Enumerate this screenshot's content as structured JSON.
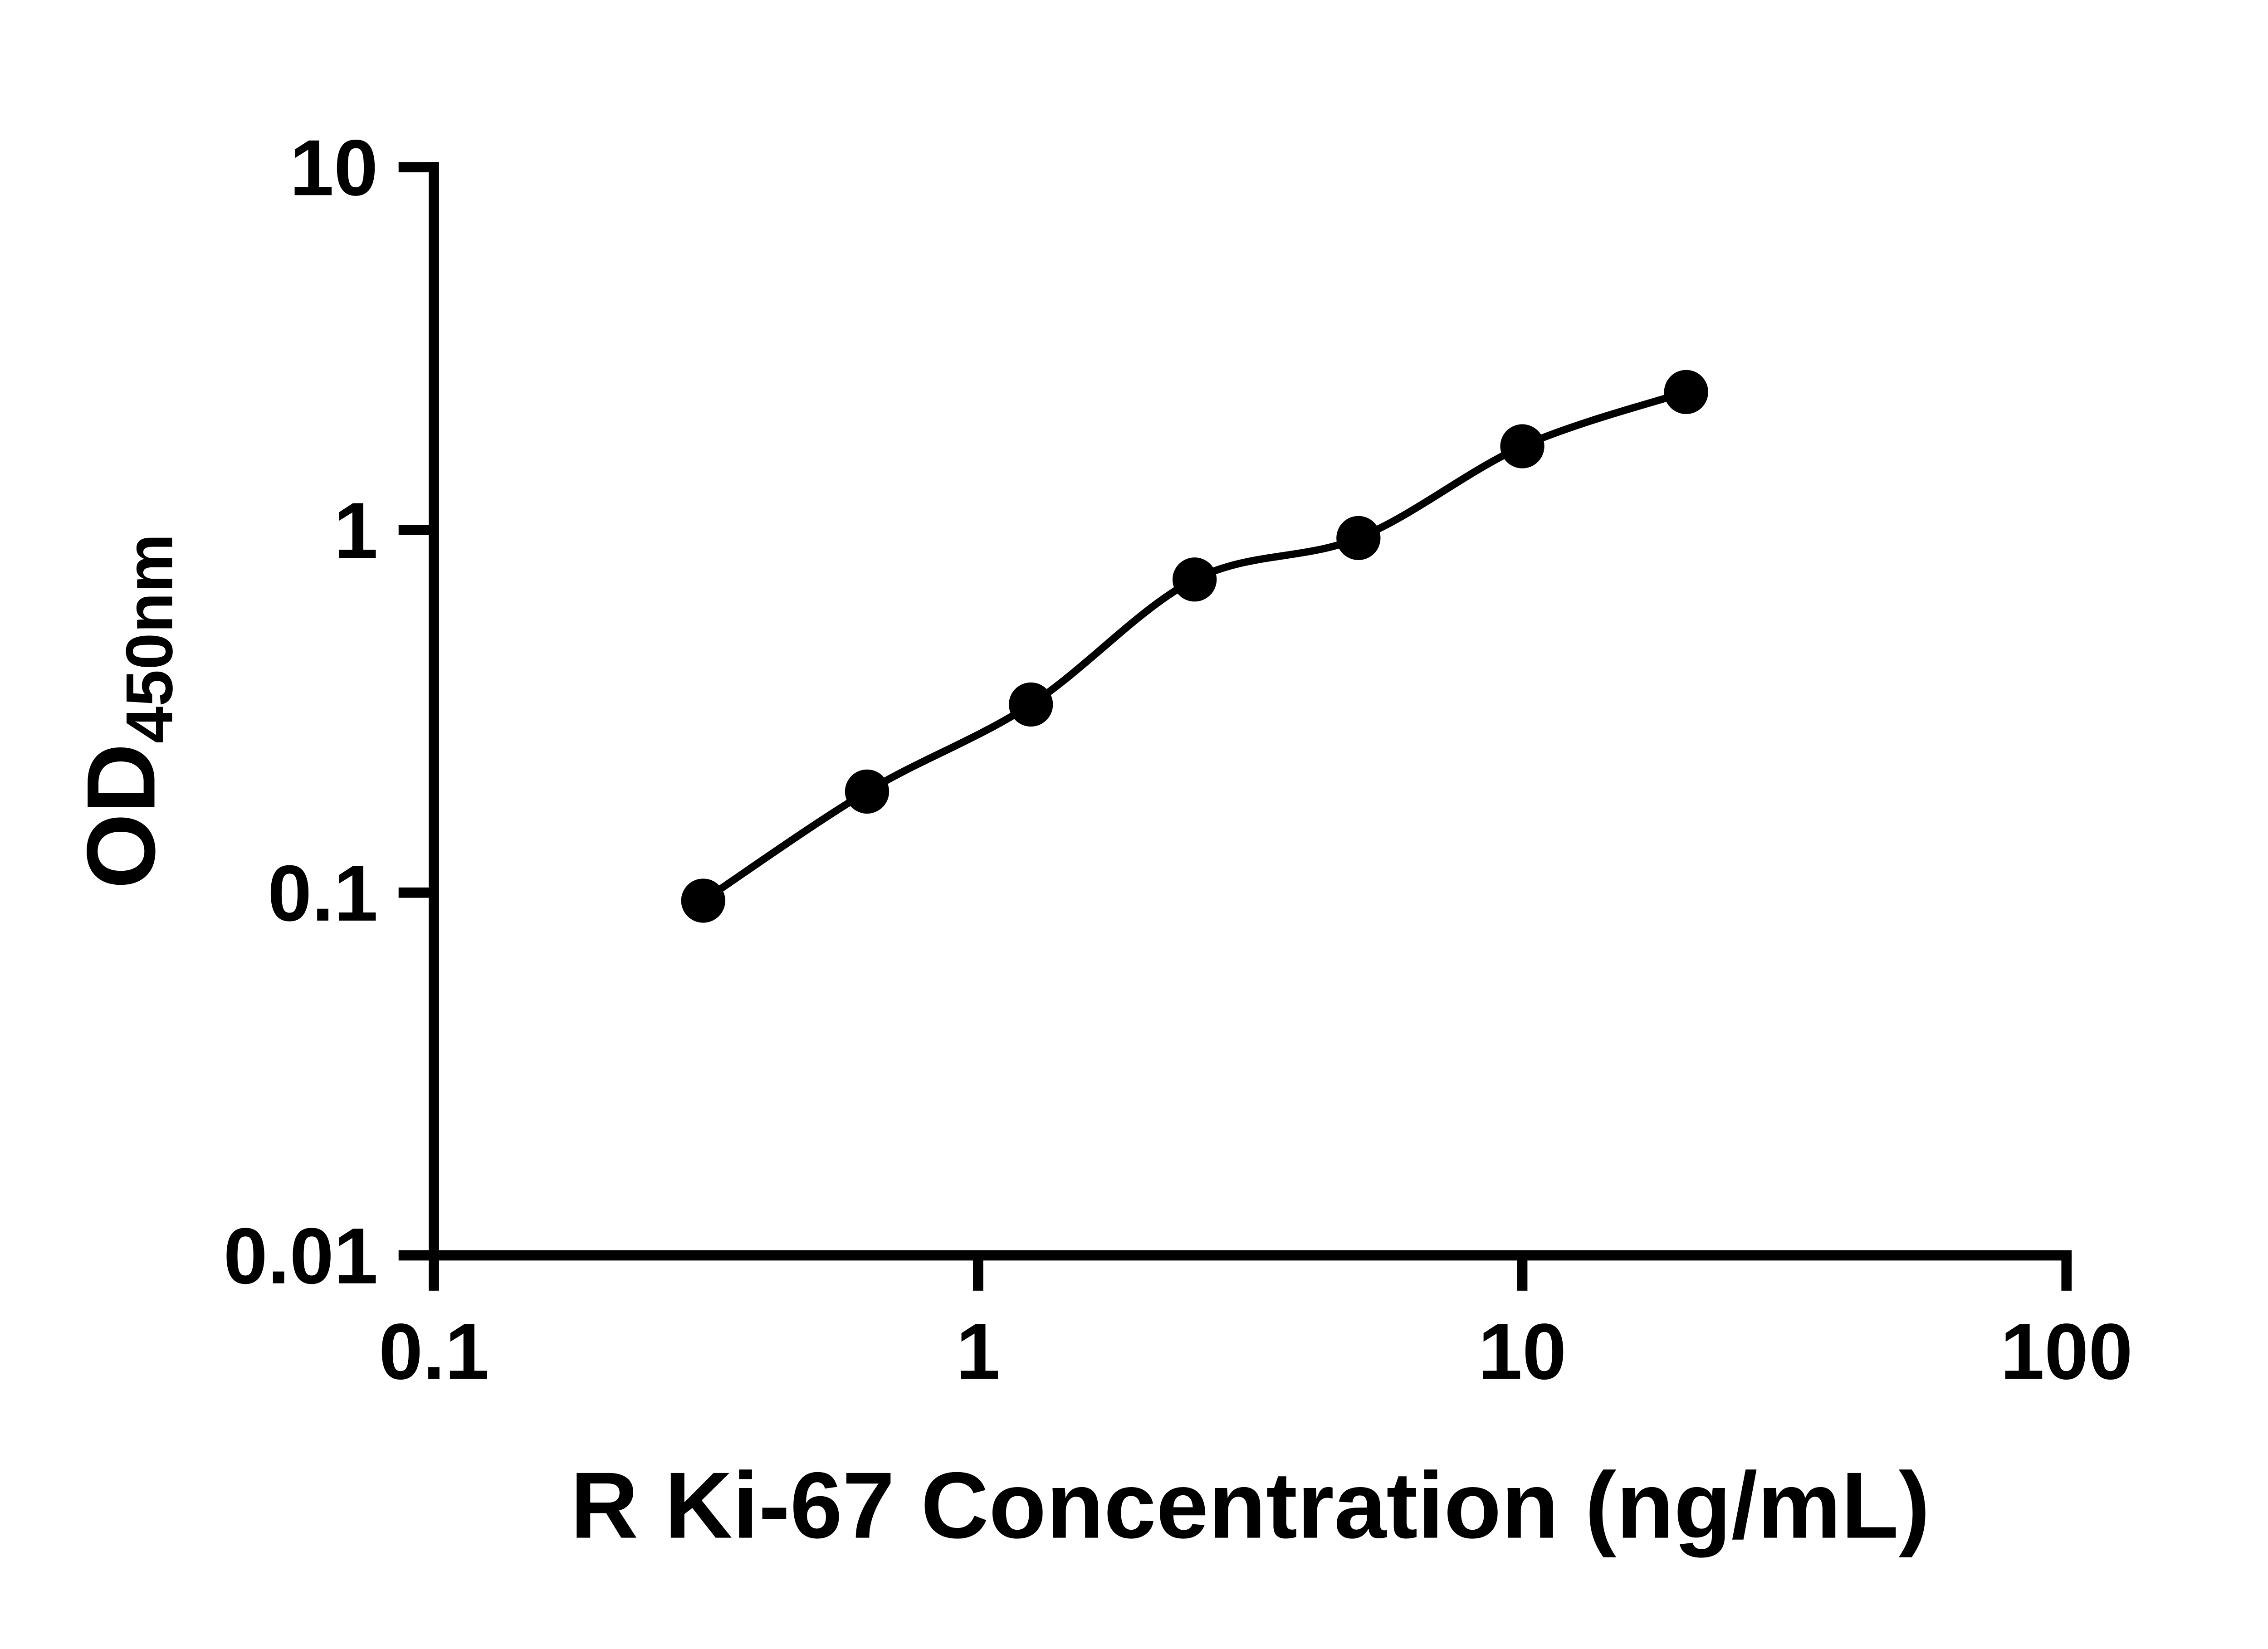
{
  "figure": {
    "background": "#ffffff"
  },
  "chart_data": {
    "type": "scatter",
    "title": "",
    "xlabel": "R Ki-67 Concentration (ng/mL)",
    "ylabel_main": "OD",
    "ylabel_sub": "450nm",
    "x_scale": "log",
    "y_scale": "log",
    "xlim": [
      0.1,
      100
    ],
    "ylim": [
      0.01,
      10
    ],
    "x_ticks": [
      0.1,
      1,
      10,
      100
    ],
    "x_tick_labels": [
      "0.1",
      "1",
      "10",
      "100"
    ],
    "y_ticks": [
      0.01,
      0.1,
      1,
      10
    ],
    "y_tick_labels": [
      "0.01",
      "0.1",
      "1",
      "10"
    ],
    "x": [
      0.3125,
      0.625,
      1.25,
      2.5,
      5,
      10,
      20
    ],
    "y": [
      0.095,
      0.19,
      0.33,
      0.73,
      0.95,
      1.7,
      2.4
    ],
    "grid": false,
    "legend": "none",
    "marker_color": "#000000",
    "line_color": "#000000",
    "axis_color": "#000000"
  }
}
